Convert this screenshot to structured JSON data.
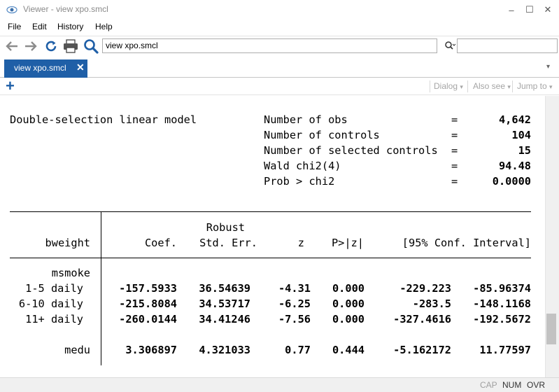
{
  "window": {
    "title": "Viewer - view xpo.smcl",
    "controls": {
      "minimize": "–",
      "maximize": "☐",
      "close": "✕"
    }
  },
  "menu": [
    "File",
    "Edit",
    "History",
    "Help"
  ],
  "toolbar": {
    "icons": [
      "back-arrow-icon",
      "forward-arrow-icon",
      "refresh-icon",
      "print-icon",
      "find-icon"
    ],
    "command": "view xpo.smcl",
    "search_value": ""
  },
  "tabs": [
    {
      "label": "view xpo.smcl",
      "close": "✕"
    }
  ],
  "tab_overflow": "▾",
  "viewer_bar": {
    "add": "+",
    "dialog": "Dialog",
    "also_see": "Also see",
    "jump_to": "Jump to",
    "dropdown": "▾"
  },
  "results": {
    "model": "Double-selection linear model",
    "stats": [
      {
        "label": "Number of obs",
        "eq": "=",
        "value": "4,642"
      },
      {
        "label": "Number of controls",
        "eq": "=",
        "value": "104"
      },
      {
        "label": "Number of selected controls",
        "eq": "=",
        "value": "15"
      },
      {
        "label": "Wald chi2(4)",
        "eq": "=",
        "value": "94.48"
      },
      {
        "label": "Prob > chi2",
        "eq": "=",
        "value": "0.0000"
      }
    ],
    "header": {
      "depvar": "bweight",
      "robust": "Robust",
      "coef": "Coef.",
      "se": "Std. Err.",
      "z": "z",
      "p": "P>|z|",
      "ci": "[95% Conf. Interval]"
    },
    "group": "msmoke",
    "rows": [
      {
        "name": "1-5 daily",
        "coef": "-157.5933",
        "se": "36.54639",
        "z": "-4.31",
        "p": "0.000",
        "lo": "-229.223",
        "hi": "-85.96374"
      },
      {
        "name": "6-10 daily",
        "coef": "-215.8084",
        "se": "34.53717",
        "z": "-6.25",
        "p": "0.000",
        "lo": "-283.5",
        "hi": "-148.1168"
      },
      {
        "name": "11+ daily",
        "coef": "-260.0144",
        "se": "34.41246",
        "z": "-7.56",
        "p": "0.000",
        "lo": "-327.4616",
        "hi": "-192.5672"
      },
      {
        "name": "medu",
        "coef": "3.306897",
        "se": "4.321033",
        "z": "0.77",
        "p": "0.444",
        "lo": "-5.162172",
        "hi": "11.77597"
      }
    ]
  },
  "status": {
    "cap": "CAP",
    "num": "NUM",
    "ovr": "OVR"
  },
  "colors": {
    "accent": "#1f5fa7",
    "status_gray": "#a0a0a0"
  }
}
